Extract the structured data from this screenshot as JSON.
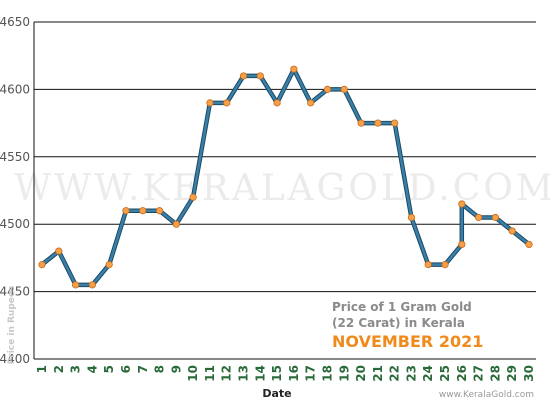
{
  "chart_data": {
    "type": "line",
    "title": "Price of 1 Gram Gold",
    "subtitle": "(22 Carat) in Kerala",
    "period": "NOVEMBER 2021",
    "xlabel": "Date",
    "ylabel": "Price in Rupees",
    "watermark": "WWW.KERALAGOLD.COM",
    "source": "www.KeralaGold.com",
    "ylim": [
      4400,
      4650
    ],
    "yticks": [
      4400,
      4450,
      4500,
      4550,
      4600,
      4650
    ],
    "grid": true,
    "x_tick_labels": [
      "1",
      "2",
      "3",
      "4",
      "5",
      "6",
      "7",
      "8",
      "9",
      "10",
      "11",
      "12",
      "13",
      "14",
      "15",
      "16",
      "17",
      "18",
      "19",
      "20",
      "21",
      "22",
      "23",
      "24",
      "25",
      "26",
      "27",
      "28",
      "29",
      "30"
    ],
    "points": [
      {
        "x": 1,
        "y": 4470
      },
      {
        "x": 2,
        "y": 4480
      },
      {
        "x": 3,
        "y": 4455
      },
      {
        "x": 4,
        "y": 4455
      },
      {
        "x": 5,
        "y": 4470
      },
      {
        "x": 6,
        "y": 4510
      },
      {
        "x": 7,
        "y": 4510
      },
      {
        "x": 8,
        "y": 4510
      },
      {
        "x": 9,
        "y": 4500
      },
      {
        "x": 10,
        "y": 4520
      },
      {
        "x": 11,
        "y": 4590
      },
      {
        "x": 12,
        "y": 4590
      },
      {
        "x": 13,
        "y": 4610
      },
      {
        "x": 14,
        "y": 4610
      },
      {
        "x": 15,
        "y": 4590
      },
      {
        "x": 16,
        "y": 4615
      },
      {
        "x": 17,
        "y": 4590
      },
      {
        "x": 18,
        "y": 4600
      },
      {
        "x": 19,
        "y": 4600
      },
      {
        "x": 20,
        "y": 4575
      },
      {
        "x": 21,
        "y": 4575
      },
      {
        "x": 22,
        "y": 4575
      },
      {
        "x": 23,
        "y": 4505
      },
      {
        "x": 24,
        "y": 4470
      },
      {
        "x": 25,
        "y": 4470
      },
      {
        "x": 26,
        "y": 4485
      },
      {
        "x": 26,
        "y": 4515
      },
      {
        "x": 27,
        "y": 4505
      },
      {
        "x": 28,
        "y": 4505
      },
      {
        "x": 29,
        "y": 4495
      },
      {
        "x": 30,
        "y": 4485
      }
    ],
    "colors": {
      "line": "#3a7fa8",
      "line_shadow": "#1c4a66",
      "marker": "#f5a04a",
      "marker_edge": "#c86a14",
      "grid": "#111111",
      "x_tick": "#2a6a3a",
      "title_accent": "#f08a1c"
    }
  }
}
